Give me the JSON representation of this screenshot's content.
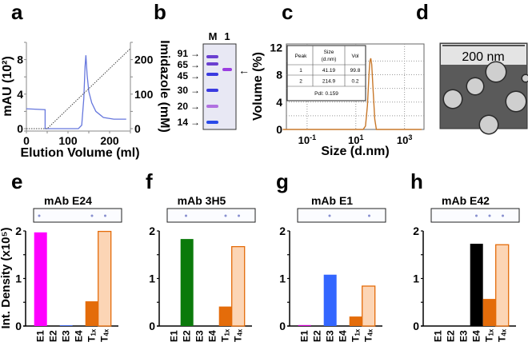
{
  "panel_letters": [
    "a",
    "b",
    "c",
    "d",
    "e",
    "f",
    "g",
    "h"
  ],
  "chart_data": [
    {
      "panel": "a",
      "type": "line",
      "xlabel": "Elution Volume (ml)",
      "ylabel": "mAU (10²)",
      "y2label": "Imidazole (mM)",
      "xlim": [
        0,
        250
      ],
      "ylim": [
        0,
        10
      ],
      "y2lim": [
        0,
        250
      ],
      "xticks": [
        0,
        100,
        200
      ],
      "yticks": [
        0,
        4,
        8
      ],
      "y2ticks": [
        0,
        100,
        200
      ],
      "series": [
        {
          "axis": "left",
          "color": "#6677dd",
          "style": "solid",
          "x": [
            0,
            45,
            45,
            125,
            133,
            138,
            141,
            143,
            146,
            150,
            157,
            167,
            185,
            210,
            240
          ],
          "y": [
            2.3,
            2.2,
            0,
            0,
            0.4,
            3.5,
            7.2,
            8.5,
            6.2,
            4.3,
            3.0,
            2.0,
            1.3,
            1.1,
            1.1
          ]
        },
        {
          "axis": "right",
          "color": "#444444",
          "style": "dotted",
          "x": [
            0,
            50,
            250
          ],
          "y": [
            0,
            0,
            232
          ]
        }
      ]
    },
    {
      "panel": "b",
      "type": "gel",
      "lanes": [
        "M",
        "1"
      ],
      "markers_kDa": [
        91,
        65,
        45,
        30,
        20,
        14
      ],
      "arrow": "←"
    },
    {
      "panel": "c",
      "type": "line",
      "xlabel": "Size (d.nm)",
      "ylabel": "Volume (%)",
      "xscale": "log",
      "xlim_log10": [
        -1.85,
        3.8
      ],
      "ylim": [
        0,
        12.5
      ],
      "xtick_labels": [
        {
          "base": "10",
          "exp": "-1",
          "log": -1
        },
        {
          "base": "10",
          "exp": "1",
          "log": 1
        },
        {
          "base": "10",
          "exp": "3",
          "log": 3
        }
      ],
      "yticks": [
        0,
        4,
        8,
        12
      ],
      "grid": true,
      "series": [
        {
          "color": "#c8782a",
          "x": [
            0.01,
            20,
            25,
            30,
            35,
            38,
            41.19,
            45,
            50,
            60,
            70,
            5000
          ],
          "y": [
            0,
            0,
            0.5,
            3.5,
            8.2,
            10.0,
            10.4,
            9.5,
            6.5,
            1.5,
            0,
            0
          ]
        }
      ],
      "table": {
        "headers": [
          "Peak",
          "Size (d.nm)",
          "Vol"
        ],
        "rows": [
          [
            "1",
            "41.19",
            "99.8"
          ],
          [
            "2",
            "214.9",
            "0.2"
          ]
        ],
        "footer": "PdI: 0.159"
      }
    },
    {
      "panel": "d",
      "type": "image",
      "scale_bar": "200 nm"
    },
    {
      "panel": "e",
      "type": "bar",
      "title": "mAb E24",
      "ylabel": "Int. Density (x10⁵)",
      "categories": [
        "E1",
        "E2",
        "E3",
        "E4",
        "T1x",
        "T4x"
      ],
      "values": [
        1.97,
        0,
        0.01,
        0,
        0.52,
        1.99
      ],
      "colors": [
        "#ff00ff",
        "#ff00ff",
        "#3366ff",
        "#000000",
        "#e46c0a",
        "#fcd5b5"
      ],
      "ylim": [
        0,
        2
      ],
      "yticks": [
        0,
        1,
        2
      ]
    },
    {
      "panel": "f",
      "type": "bar",
      "title": "mAb 3H5",
      "categories": [
        "E1",
        "E2",
        "E3",
        "E4",
        "T1x",
        "T4x"
      ],
      "values": [
        0,
        1.83,
        0,
        0,
        0.41,
        1.67
      ],
      "colors": [
        "#ff00ff",
        "#0b7a0b",
        "#3366ff",
        "#000000",
        "#e46c0a",
        "#fcd5b5"
      ],
      "ylim": [
        0,
        2
      ],
      "yticks": [
        0,
        1,
        2
      ]
    },
    {
      "panel": "g",
      "type": "bar",
      "title": "mAb E1",
      "categories": [
        "E1",
        "E2",
        "E3",
        "E4",
        "T1x",
        "T4x"
      ],
      "values": [
        0.02,
        0,
        1.08,
        0,
        0.2,
        0.84
      ],
      "colors": [
        "#cc00cc",
        "#0b7a0b",
        "#3366ff",
        "#000000",
        "#e46c0a",
        "#fcd5b5"
      ],
      "ylim": [
        0,
        2
      ],
      "yticks": [
        0,
        1,
        2
      ]
    },
    {
      "panel": "h",
      "type": "bar",
      "title": "mAb E42",
      "categories": [
        "E1",
        "E2",
        "E3",
        "E4",
        "T1x",
        "T4x"
      ],
      "values": [
        0,
        0,
        0,
        1.73,
        0.57,
        1.71
      ],
      "colors": [
        "#ff00ff",
        "#0b7a0b",
        "#3366ff",
        "#000000",
        "#e46c0a",
        "#fcd5b5"
      ],
      "ylim": [
        0,
        2
      ],
      "yticks": [
        0,
        1,
        2
      ]
    }
  ],
  "colors": {
    "T_outline": "#e46c0a",
    "axis": "#000000"
  }
}
